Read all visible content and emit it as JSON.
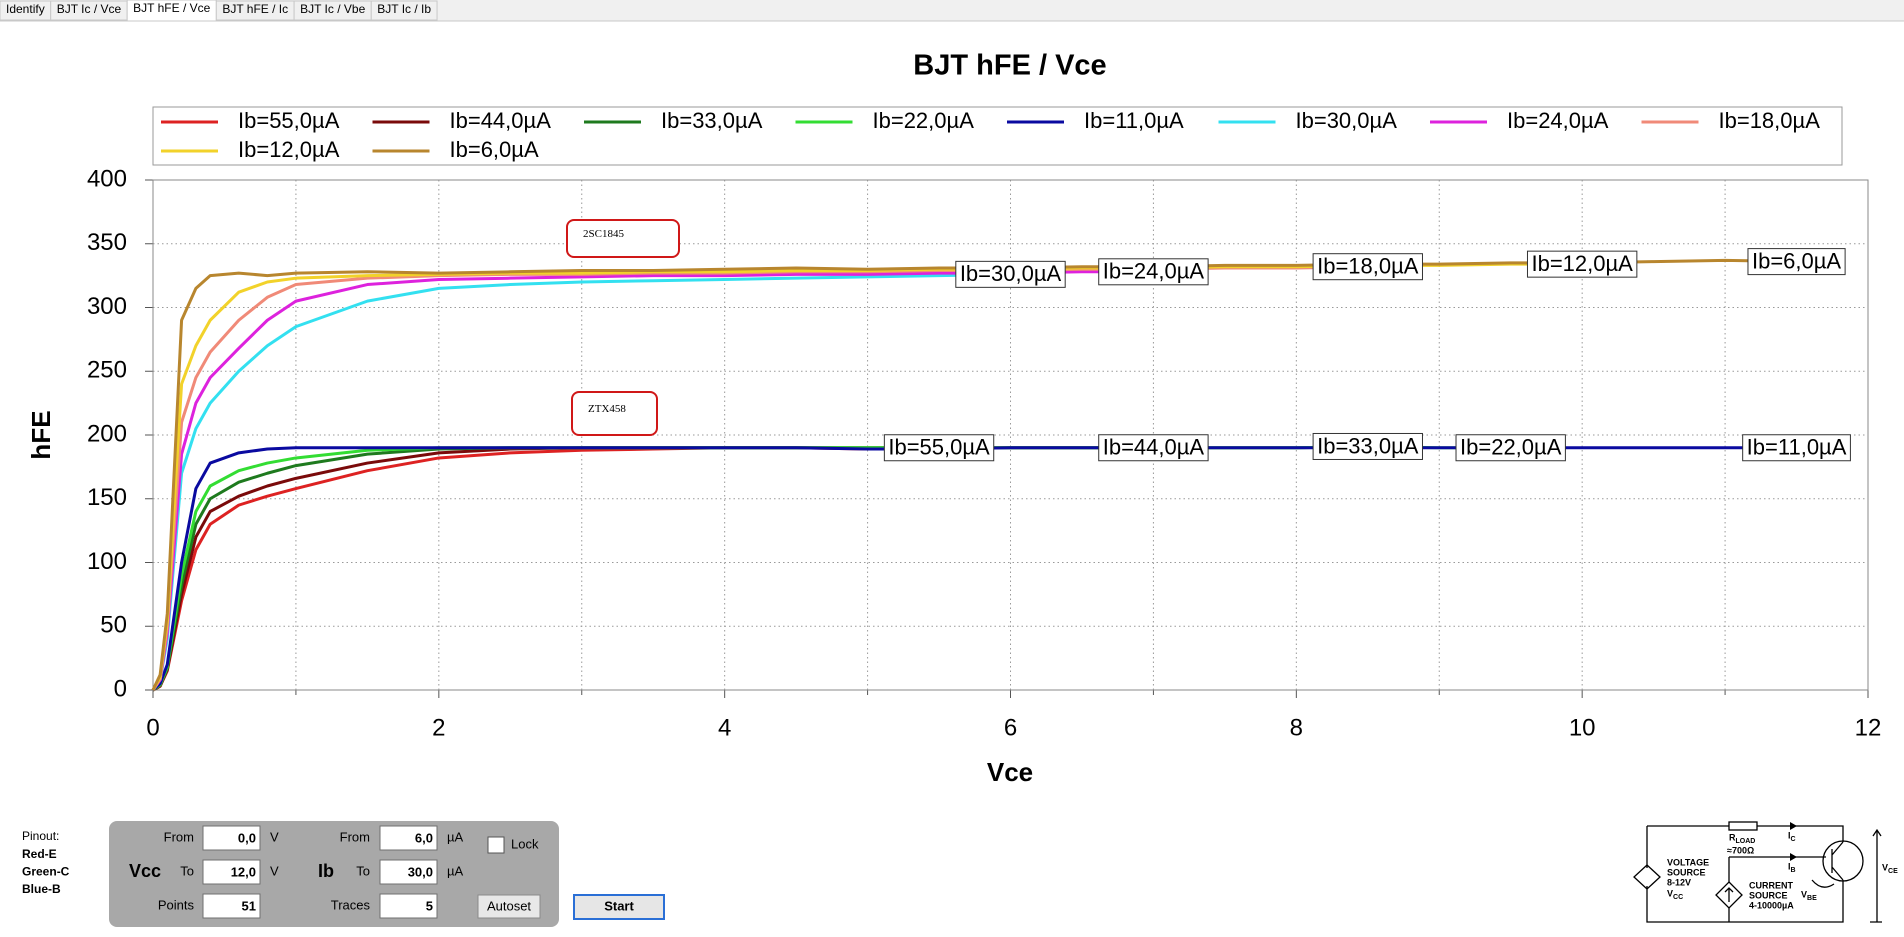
{
  "tabs": {
    "labels": [
      "Identify",
      "BJT Ic / Vce",
      "BJT hFE / Vce",
      "BJT hFE / Ic",
      "BJT Ic / Vbe",
      "BJT Ic / Ib"
    ],
    "active": 2
  },
  "chart_data": {
    "type": "line",
    "title": "BJT hFE / Vce",
    "x_label": "Vce",
    "y_label": "hFE",
    "xlim": [
      0,
      12
    ],
    "ylim": [
      0,
      400
    ],
    "xticks": [
      0,
      2,
      4,
      6,
      8,
      10,
      12
    ],
    "x_minor_grid": [
      1,
      3,
      5,
      7,
      9,
      11
    ],
    "yticks": [
      0,
      50,
      100,
      150,
      200,
      250,
      300,
      350,
      400
    ],
    "grid": true,
    "legend": "top",
    "annotations": [
      "2SC1845",
      "ZTX458"
    ],
    "x": [
      0,
      0.05,
      0.1,
      0.2,
      0.3,
      0.4,
      0.6,
      0.8,
      1,
      1.5,
      2,
      2.5,
      3,
      3.5,
      4,
      4.5,
      5,
      5.5,
      6,
      6.5,
      7,
      7.5,
      8,
      8.5,
      9,
      9.5,
      10,
      10.5,
      11,
      11.5
    ],
    "series": [
      {
        "name": "Ib=55,0µA",
        "color": "#dd2222",
        "values": [
          0,
          3,
          15,
          70,
          110,
          130,
          145,
          152,
          158,
          172,
          182,
          186,
          188,
          189,
          190,
          190,
          189,
          190,
          null,
          null,
          null,
          null,
          null,
          null,
          null,
          null,
          null,
          null,
          null,
          null
        ]
      },
      {
        "name": "Ib=44,0µA",
        "color": "#7a0a0a",
        "values": [
          0,
          3,
          16,
          75,
          120,
          140,
          152,
          160,
          166,
          178,
          186,
          189,
          190,
          190,
          190,
          190,
          190,
          190,
          190,
          190,
          190,
          null,
          null,
          null,
          null,
          null,
          null,
          null,
          null,
          null
        ]
      },
      {
        "name": "Ib=33,0µA",
        "color": "#1e7a1e",
        "values": [
          0,
          4,
          17,
          82,
          130,
          150,
          163,
          170,
          176,
          185,
          189,
          190,
          190,
          190,
          190,
          190,
          190,
          190,
          190,
          190,
          190,
          190,
          190,
          191,
          null,
          null,
          null,
          null,
          null,
          null
        ]
      },
      {
        "name": "Ib=22,0µA",
        "color": "#33dd33",
        "values": [
          0,
          4,
          18,
          90,
          140,
          160,
          172,
          178,
          182,
          188,
          190,
          190,
          190,
          190,
          190,
          190,
          190,
          190,
          190,
          190,
          190,
          190,
          190,
          191,
          190,
          190,
          null,
          null,
          null,
          null
        ]
      },
      {
        "name": "Ib=11,0µA",
        "color": "#0a0aa0",
        "values": [
          0,
          5,
          20,
          100,
          158,
          178,
          186,
          189,
          190,
          190,
          190,
          190,
          190,
          190,
          190,
          190,
          189,
          189,
          190,
          190,
          190,
          190,
          190,
          190,
          190,
          190,
          190,
          190,
          190,
          190
        ]
      },
      {
        "name": "Ib=30,0µA",
        "color": "#33e0f0",
        "values": [
          0,
          8,
          40,
          170,
          205,
          225,
          250,
          270,
          285,
          305,
          315,
          318,
          320,
          321,
          322,
          323,
          324,
          325,
          326,
          null,
          null,
          null,
          null,
          null,
          null,
          null,
          null,
          null,
          null,
          null
        ]
      },
      {
        "name": "Ib=24,0µA",
        "color": "#dd22dd",
        "values": [
          0,
          8,
          45,
          185,
          225,
          245,
          268,
          290,
          305,
          318,
          322,
          323,
          324,
          325,
          325,
          326,
          326,
          327,
          327,
          328,
          328,
          null,
          null,
          null,
          null,
          null,
          null,
          null,
          null,
          null
        ]
      },
      {
        "name": "Ib=18,0µA",
        "color": "#f08a78",
        "values": [
          0,
          9,
          50,
          210,
          245,
          265,
          290,
          308,
          318,
          323,
          325,
          326,
          326,
          327,
          327,
          328,
          328,
          329,
          329,
          330,
          330,
          331,
          331,
          332,
          null,
          null,
          null,
          null,
          null,
          null
        ]
      },
      {
        "name": "Ib=12,0µA",
        "color": "#f2d22a",
        "values": [
          0,
          10,
          55,
          240,
          270,
          290,
          312,
          320,
          323,
          325,
          326,
          327,
          327,
          328,
          328,
          329,
          329,
          330,
          330,
          331,
          331,
          332,
          332,
          333,
          333,
          334,
          334,
          null,
          null,
          null
        ]
      },
      {
        "name": "Ib=6,0µA",
        "color": "#b8862e",
        "values": [
          0,
          12,
          60,
          290,
          315,
          325,
          327,
          325,
          327,
          328,
          327,
          328,
          329,
          329,
          330,
          331,
          330,
          331,
          331,
          332,
          332,
          333,
          333,
          334,
          334,
          335,
          335,
          336,
          337,
          336
        ]
      }
    ]
  },
  "pinout": {
    "title": "Pinout:",
    "pins": [
      {
        "color": "Red",
        "pin": "-E"
      },
      {
        "color": "Green",
        "pin": "-C"
      },
      {
        "color": "Blue",
        "pin": "-B"
      }
    ]
  },
  "controls": {
    "vcc": {
      "label": "Vcc",
      "from_label": "From",
      "from": "0,0",
      "to_label": "To",
      "to": "12,0",
      "unit": "V",
      "points_label": "Points",
      "points": "51"
    },
    "ib": {
      "label": "Ib",
      "from_label": "From",
      "from": "6,0",
      "to_label": "To",
      "to": "30,0",
      "unit": "µA",
      "traces_label": "Traces",
      "traces": "5"
    },
    "lock": "Lock",
    "autoset": "Autoset",
    "start": "Start"
  },
  "schematic": {
    "voltage_source": [
      "VOLTAGE",
      "SOURCE",
      "8-12V"
    ],
    "vcc": {
      "main": "V",
      "sub": "CC"
    },
    "rload": {
      "main": "R",
      "sub": "LOAD"
    },
    "rload_value": "≈700Ω",
    "ic": {
      "main": "I",
      "sub": "C"
    },
    "ib": {
      "main": "I",
      "sub": "B"
    },
    "current_source": [
      "CURRENT",
      "SOURCE",
      "4-10000µA"
    ],
    "vbe": {
      "main": "V",
      "sub": "BE"
    },
    "vce": {
      "main": "V",
      "sub": "CE"
    }
  }
}
